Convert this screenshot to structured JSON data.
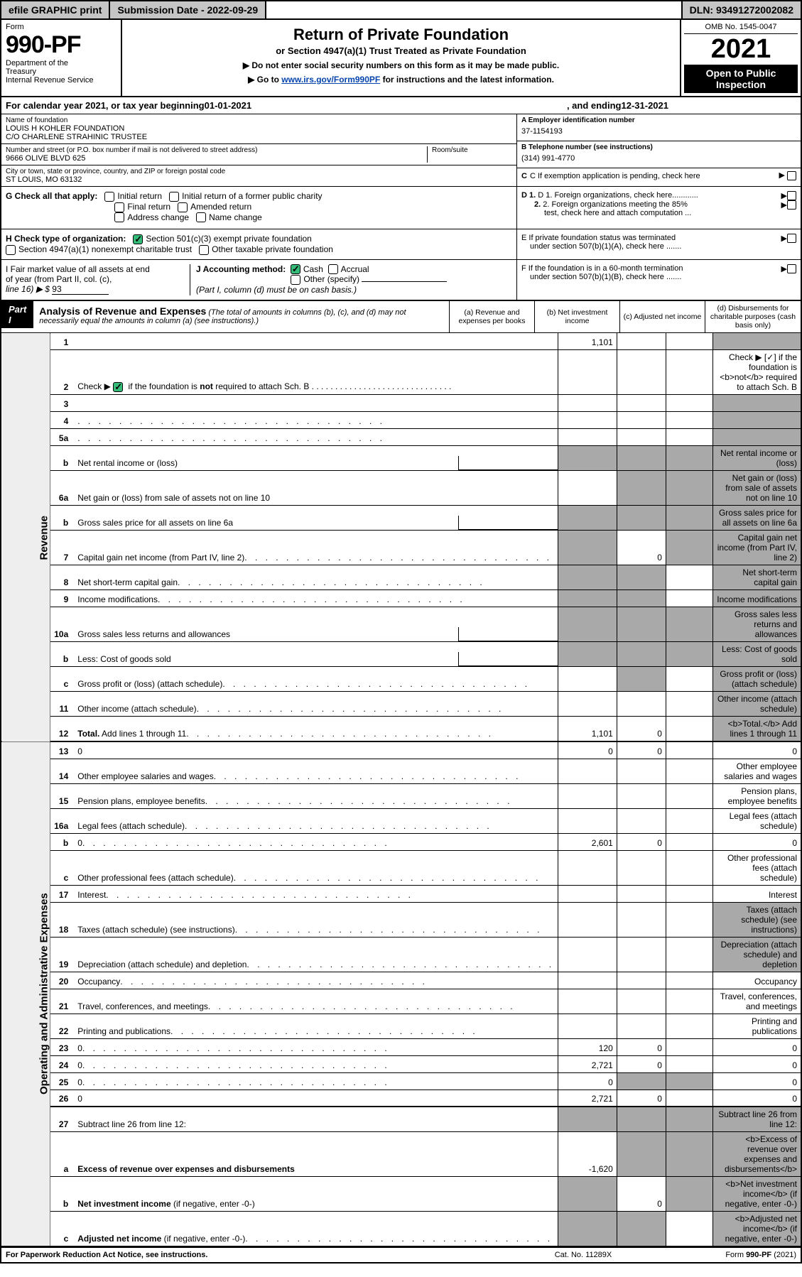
{
  "topbar": {
    "efile": "efile GRAPHIC print",
    "submission_label": "Submission Date - 2022-09-29",
    "dln": "DLN: 93491272002082"
  },
  "header": {
    "form_label": "Form",
    "form_number": "990-PF",
    "dept1": "Department of the",
    "dept2": "Treasury",
    "dept3": "Internal Revenue Service",
    "title": "Return of Private Foundation",
    "subtitle": "or Section 4947(a)(1) Trust Treated as Private Foundation",
    "note1": "▶ Do not enter social security numbers on this form as it may be made public.",
    "note2_pre": "▶ Go to ",
    "note2_link": "www.irs.gov/Form990PF",
    "note2_post": " for instructions and the latest information.",
    "omb": "OMB No. 1545-0047",
    "year": "2021",
    "inspect1": "Open to Public",
    "inspect2": "Inspection"
  },
  "cal": {
    "pre": "For calendar year 2021, or tax year beginning ",
    "begin": "01-01-2021",
    "mid": " , and ending ",
    "end": "12-31-2021"
  },
  "info": {
    "name_label": "Name of foundation",
    "name1": "LOUIS H KOHLER FOUNDATION",
    "name2": "C/O CHARLENE STRAHINIC TRUSTEE",
    "addr_label": "Number and street (or P.O. box number if mail is not delivered to street address)",
    "addr": "9666 OLIVE BLVD 625",
    "room_label": "Room/suite",
    "city_label": "City or town, state or province, country, and ZIP or foreign postal code",
    "city": "ST LOUIS, MO  63132",
    "ein_label": "A Employer identification number",
    "ein": "37-1154193",
    "phone_label": "B Telephone number (see instructions)",
    "phone": "(314) 991-4770",
    "c_label": "C If exemption application is pending, check here",
    "d1": "D 1. Foreign organizations, check here............",
    "d2a": "2. Foreign organizations meeting the 85%",
    "d2b": "test, check here and attach computation ...",
    "e1": "E  If private foundation status was terminated",
    "e2": "under section 507(b)(1)(A), check here .......",
    "f1": "F  If the foundation is in a 60-month termination",
    "f2": "under section 507(b)(1)(B), check here .......",
    "g_label": "G Check all that apply:",
    "g_initial": "Initial return",
    "g_initial_former": "Initial return of a former public charity",
    "g_final": "Final return",
    "g_amended": "Amended return",
    "g_addr": "Address change",
    "g_name": "Name change",
    "h_label": "H Check type of organization:",
    "h_501c3": "Section 501(c)(3) exempt private foundation",
    "h_4947": "Section 4947(a)(1) nonexempt charitable trust",
    "h_other": "Other taxable private foundation",
    "i1": "I Fair market value of all assets at end",
    "i2": "of year (from Part II, col. (c),",
    "i3": "line 16) ▶ $ ",
    "i_val": "93",
    "j_label": "J Accounting method:",
    "j_cash": "Cash",
    "j_accrual": "Accrual",
    "j_other": "Other (specify)",
    "j_note": "(Part I, column (d) must be on cash basis.)"
  },
  "part1": {
    "label": "Part I",
    "title": "Analysis of Revenue and Expenses",
    "title_note": " (The total of amounts in columns (b), (c), and (d) may not necessarily equal the amounts in column (a) (see instructions).)",
    "colA": "(a)   Revenue and expenses per books",
    "colB": "(b)   Net investment income",
    "colC": "(c)   Adjusted net income",
    "colD": "(d)  Disbursements for charitable purposes (cash basis only)"
  },
  "side": {
    "revenue": "Revenue",
    "expenses": "Operating and Administrative Expenses"
  },
  "rows": [
    {
      "n": "1",
      "d": "",
      "a": "1,101",
      "b": "",
      "c": "",
      "grayD": true,
      "dots": false
    },
    {
      "n": "2",
      "d": "Check ▶ [✓] if the foundation is <b>not</b> required to attach Sch. B",
      "dots": true,
      "merge": true
    },
    {
      "n": "3",
      "d": "",
      "a": "",
      "b": "",
      "c": "",
      "grayD": true
    },
    {
      "n": "4",
      "d": "",
      "dots": true,
      "a": "",
      "b": "",
      "c": "",
      "grayD": true
    },
    {
      "n": "5a",
      "d": "",
      "dots": true,
      "a": "",
      "b": "",
      "c": "",
      "grayD": true
    },
    {
      "n": "b",
      "d": "Net rental income or (loss)",
      "half": true,
      "grayA": true,
      "grayB": true,
      "grayC": true,
      "grayD": true
    },
    {
      "n": "6a",
      "d": "Net gain or (loss) from sale of assets not on line 10",
      "a": "",
      "grayB": true,
      "grayC": true,
      "grayD": true
    },
    {
      "n": "b",
      "d": "Gross sales price for all assets on line 6a",
      "half": true,
      "grayA": true,
      "grayB": true,
      "grayC": true,
      "grayD": true
    },
    {
      "n": "7",
      "d": "Capital gain net income (from Part IV, line 2)",
      "dots": true,
      "grayA": true,
      "b": "0",
      "grayC": true,
      "grayD": true
    },
    {
      "n": "8",
      "d": "Net short-term capital gain",
      "dots": true,
      "grayA": true,
      "grayB": true,
      "c": "",
      "grayD": true
    },
    {
      "n": "9",
      "d": "Income modifications",
      "dots": true,
      "grayA": true,
      "grayB": true,
      "c": "",
      "grayD": true
    },
    {
      "n": "10a",
      "d": "Gross sales less returns and allowances",
      "half": true,
      "grayA": true,
      "grayB": true,
      "grayC": true,
      "grayD": true
    },
    {
      "n": "b",
      "d": "Less: Cost of goods sold",
      "dots": true,
      "half": true,
      "grayA": true,
      "grayB": true,
      "grayC": true,
      "grayD": true
    },
    {
      "n": "c",
      "d": "Gross profit or (loss) (attach schedule)",
      "dots": true,
      "a": "",
      "grayB": true,
      "c": "",
      "grayD": true
    },
    {
      "n": "11",
      "d": "Other income (attach schedule)",
      "dots": true,
      "a": "",
      "b": "",
      "c": "",
      "grayD": true
    },
    {
      "n": "12",
      "d": "<b>Total.</b> Add lines 1 through 11",
      "dots": true,
      "a": "1,101",
      "b": "0",
      "c": "",
      "grayD": true,
      "thick": true
    },
    {
      "n": "13",
      "d": "0",
      "a": "0",
      "b": "0",
      "c": ""
    },
    {
      "n": "14",
      "d": "Other employee salaries and wages",
      "dots": true
    },
    {
      "n": "15",
      "d": "Pension plans, employee benefits",
      "dots": true
    },
    {
      "n": "16a",
      "d": "Legal fees (attach schedule)",
      "dots": true
    },
    {
      "n": "b",
      "d": "0",
      "dots": true,
      "a": "2,601",
      "b": "0",
      "c": ""
    },
    {
      "n": "c",
      "d": "Other professional fees (attach schedule)",
      "dots": true
    },
    {
      "n": "17",
      "d": "Interest",
      "dots": true
    },
    {
      "n": "18",
      "d": "Taxes (attach schedule) (see instructions)",
      "dots": true,
      "grayD": true
    },
    {
      "n": "19",
      "d": "Depreciation (attach schedule) and depletion",
      "dots": true,
      "grayD": true
    },
    {
      "n": "20",
      "d": "Occupancy",
      "dots": true
    },
    {
      "n": "21",
      "d": "Travel, conferences, and meetings",
      "dots": true
    },
    {
      "n": "22",
      "d": "Printing and publications",
      "dots": true
    },
    {
      "n": "23",
      "d": "0",
      "dots": true,
      "a": "120",
      "b": "0",
      "c": ""
    },
    {
      "n": "24",
      "d": "0",
      "dots": true,
      "a": "2,721",
      "b": "0",
      "c": ""
    },
    {
      "n": "25",
      "d": "0",
      "dots": true,
      "a": "0",
      "grayB": true,
      "grayC": true
    },
    {
      "n": "26",
      "d": "0",
      "a": "2,721",
      "b": "0",
      "c": "",
      "thick": true
    },
    {
      "n": "27",
      "d": "Subtract line 26 from line 12:",
      "grayA": true,
      "grayB": true,
      "grayC": true,
      "grayD": true
    },
    {
      "n": "a",
      "d": "<b>Excess of revenue over expenses and disbursements</b>",
      "a": "-1,620",
      "grayB": true,
      "grayC": true,
      "grayD": true
    },
    {
      "n": "b",
      "d": "<b>Net investment income</b> (if negative, enter -0-)",
      "grayA": true,
      "b": "0",
      "grayC": true,
      "grayD": true
    },
    {
      "n": "c",
      "d": "<b>Adjusted net income</b> (if negative, enter -0-)",
      "dots": true,
      "grayA": true,
      "grayB": true,
      "c": "",
      "grayD": true,
      "thick": true
    }
  ],
  "footer": {
    "left": "For Paperwork Reduction Act Notice, see instructions.",
    "mid": "Cat. No. 11289X",
    "right": "Form 990-PF (2021)"
  },
  "colors": {
    "topbar_bg": "#c5c5c5",
    "gray_cell": "#a9a9a9",
    "side_bg": "#eeeeee",
    "check_green": "#33bb77",
    "link": "#0645ad"
  }
}
